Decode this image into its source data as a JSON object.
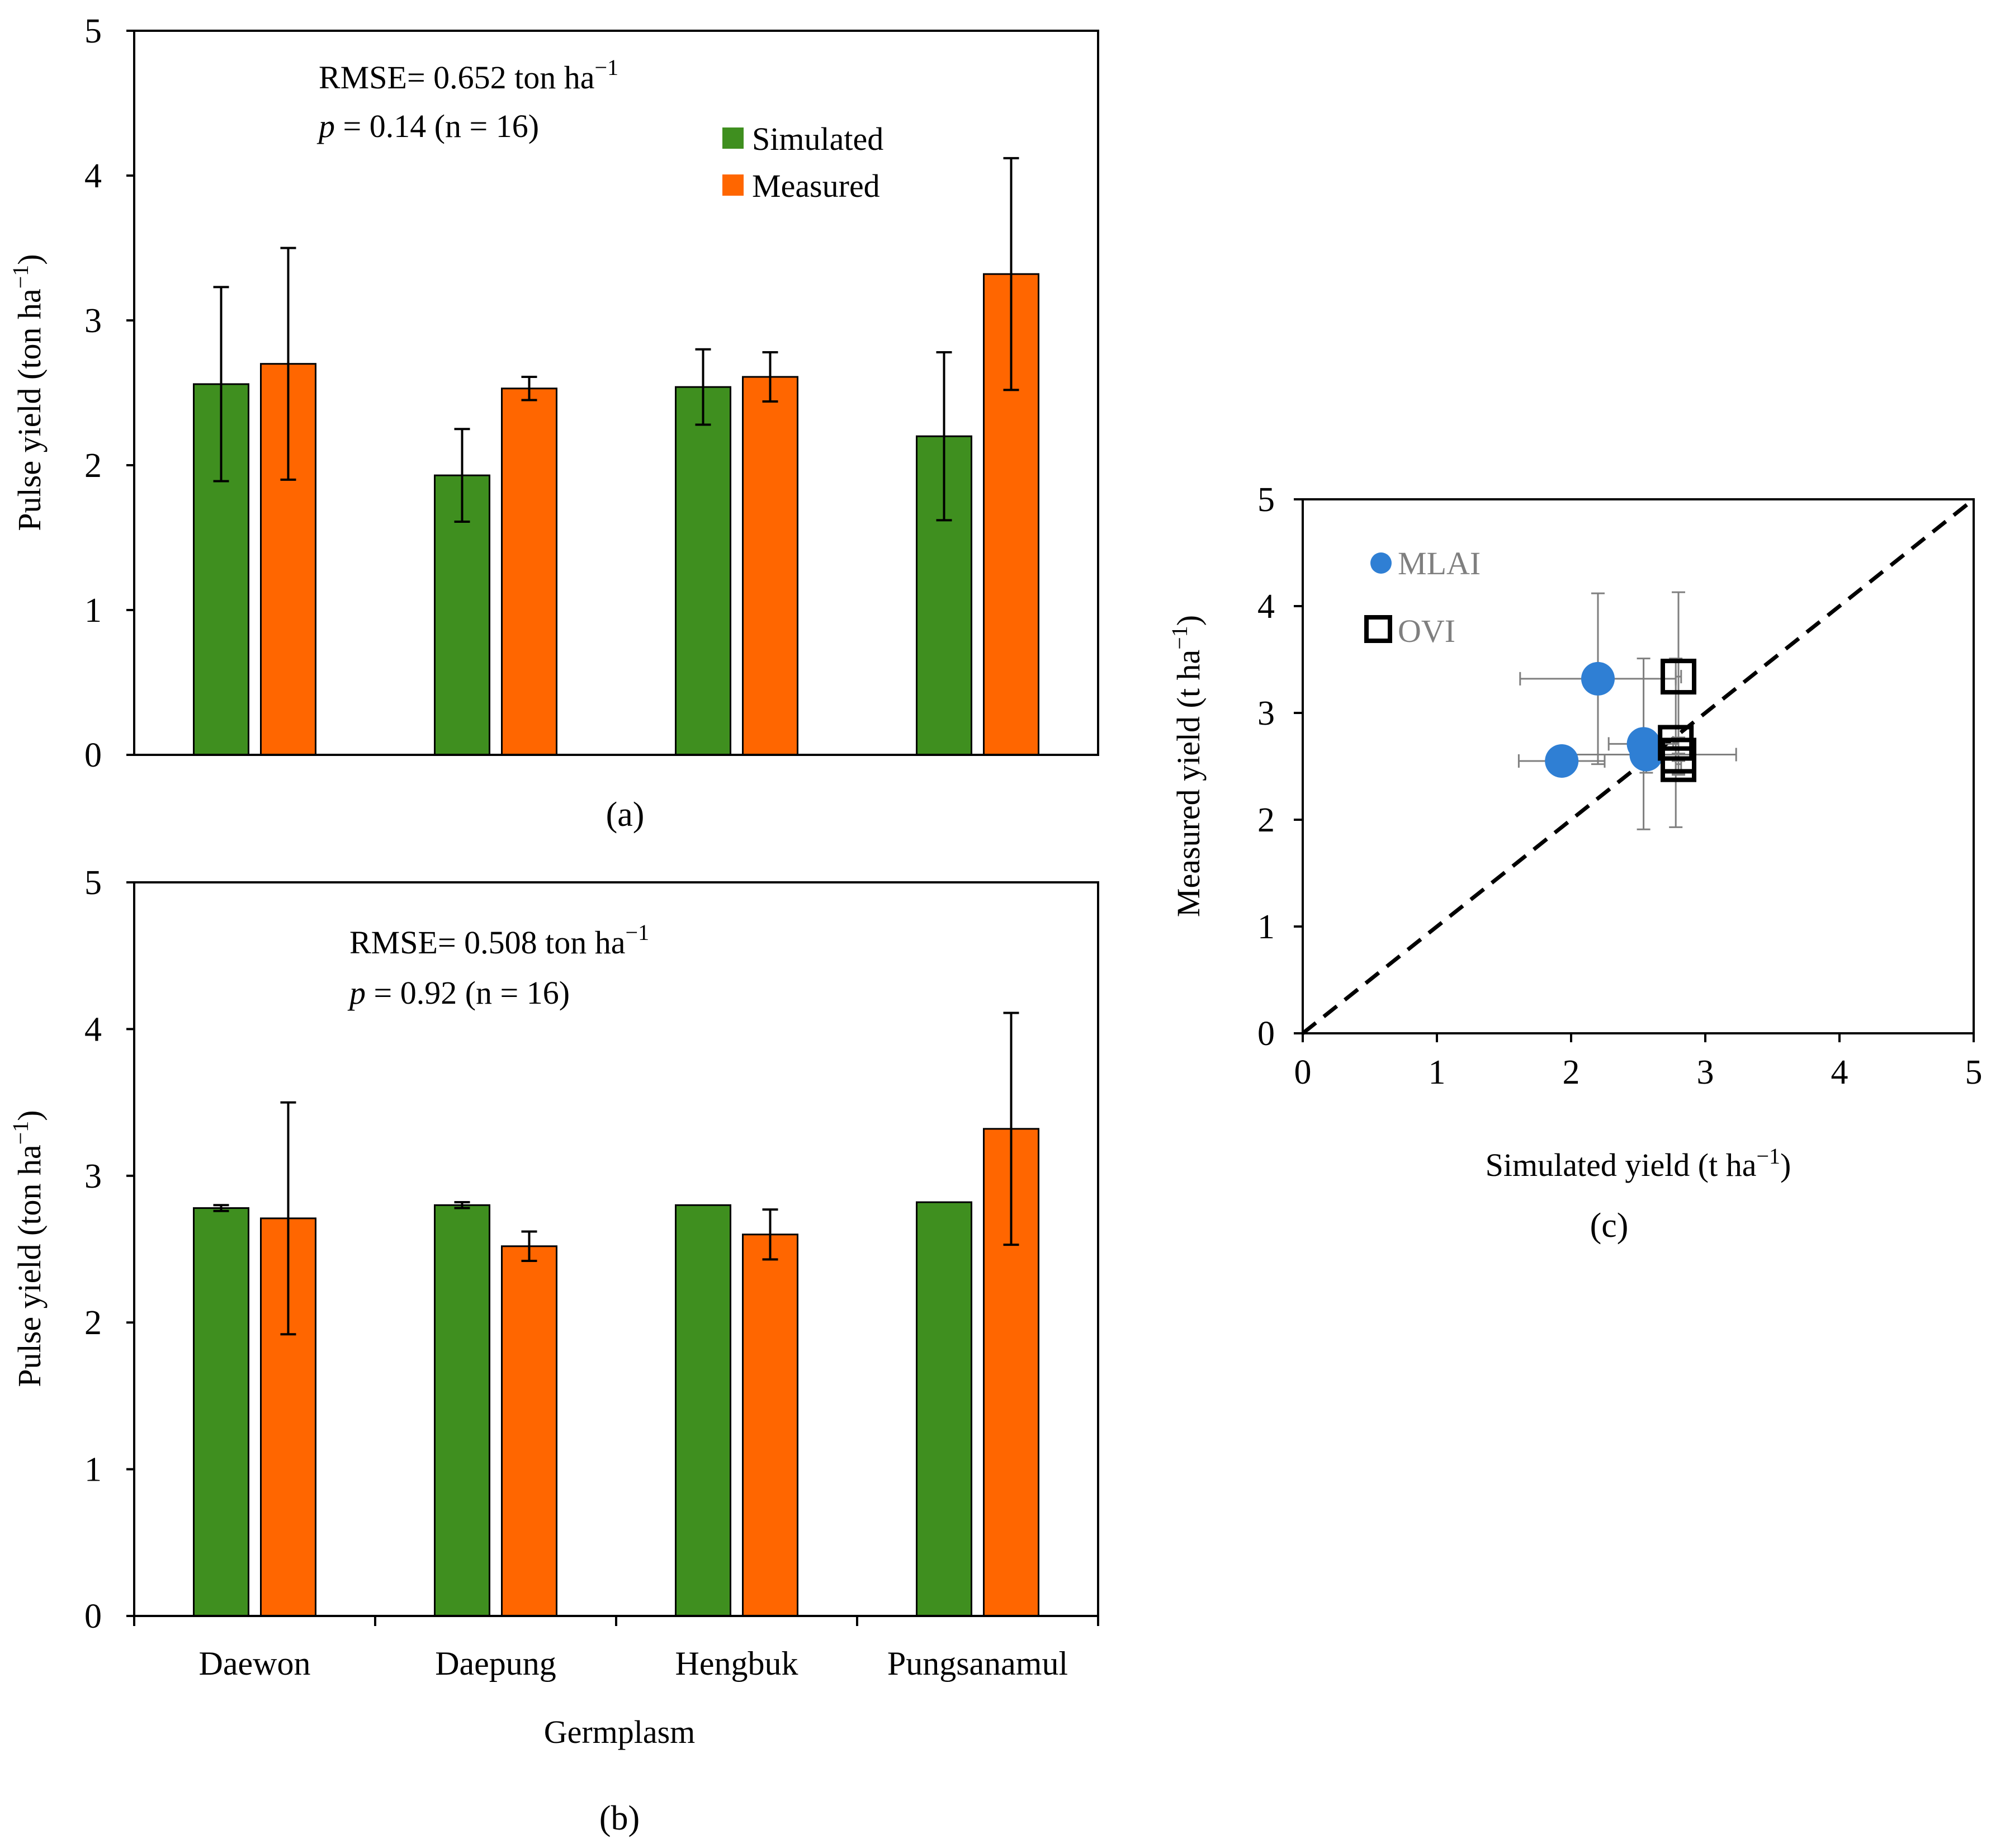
{
  "colors": {
    "simulated": "#3f8f1f",
    "measured": "#ff6600",
    "mlai": "#2f7fd4",
    "ovi_edge": "#000000",
    "error_bar": "#000000",
    "scatter_error_bar": "#7f7f7f"
  },
  "chart_data": [
    {
      "type": "bar",
      "panel": "(a)",
      "caption": "(a)",
      "categories": [
        "Daewon",
        "Daepung",
        "Hengbuk",
        "Pungsanamul"
      ],
      "series": [
        {
          "name": "Simulated",
          "values": [
            2.56,
            1.93,
            2.54,
            2.2
          ],
          "errors": [
            0.67,
            0.32,
            0.26,
            0.58
          ]
        },
        {
          "name": "Measured",
          "values": [
            2.7,
            2.53,
            2.61,
            3.32
          ],
          "errors": [
            0.8,
            0.08,
            0.17,
            0.8
          ]
        }
      ],
      "ylabel_main": "Pulse yield (ton ha",
      "ylabel_sup": "−1",
      "ylabel_close": ")",
      "ylim": [
        0,
        5
      ],
      "yticks": [
        "0",
        "1",
        "2",
        "3",
        "4",
        "5"
      ],
      "rmse_label": "RMSE=  0.652  ton ha",
      "rmse_sup": "−1",
      "p_symbol": "p",
      "p_text": " = 0.14  (n = 16)",
      "legend": [
        "Simulated",
        "Measured"
      ]
    },
    {
      "type": "bar",
      "panel": "(b)",
      "caption": "(b)",
      "categories": [
        "Daewon",
        "Daepung",
        "Hengbuk",
        "Pungsanamul"
      ],
      "series": [
        {
          "name": "Simulated",
          "values": [
            2.78,
            2.8,
            2.8,
            2.82
          ],
          "errors": [
            0.02,
            0.02,
            0.0,
            0.0
          ]
        },
        {
          "name": "Measured",
          "values": [
            2.71,
            2.52,
            2.6,
            3.32
          ],
          "errors": [
            0.79,
            0.1,
            0.17,
            0.79
          ]
        }
      ],
      "ylabel_main": "Pulse yield (ton ha",
      "ylabel_sup": "−1",
      "ylabel_close": ")",
      "xlabel": "Germplasm",
      "ylim": [
        0,
        5
      ],
      "yticks": [
        "0",
        "1",
        "2",
        "3",
        "4",
        "5"
      ],
      "rmse_label": "RMSE=  0.508  ton ha",
      "rmse_sup": "−1",
      "p_symbol": "p",
      "p_text": " = 0.92  (n = 16)"
    },
    {
      "type": "scatter",
      "panel": "(c)",
      "caption": "(c)",
      "xlabel_main": "Simulated  yield (t ha",
      "xlabel_sup": "−1",
      "xlabel_close": ")",
      "ylabel_main": "Measured yield (t ha",
      "ylabel_sup": "−1",
      "ylabel_close": ")",
      "xlim": [
        0,
        5
      ],
      "ylim": [
        0,
        5
      ],
      "xticks": [
        "0",
        "1",
        "2",
        "3",
        "4",
        "5"
      ],
      "yticks": [
        "0",
        "1",
        "2",
        "3",
        "4",
        "5"
      ],
      "reference_line": "1:1 dashed",
      "series": [
        {
          "name": "MLAI",
          "marker": "filled-circle",
          "points": [
            {
              "x": 2.2,
              "y": 3.32,
              "xerr": 0.58,
              "yerr": 0.8
            },
            {
              "x": 1.93,
              "y": 2.55,
              "xerr": 0.32,
              "yerr": 0.08
            },
            {
              "x": 2.54,
              "y": 2.71,
              "xerr": 0.26,
              "yerr": 0.8
            },
            {
              "x": 2.56,
              "y": 2.61,
              "xerr": 0.67,
              "yerr": 0.17
            }
          ]
        },
        {
          "name": "OVI",
          "marker": "open-square",
          "points": [
            {
              "x": 2.8,
              "y": 3.34,
              "xerr": 0.02,
              "yerr": 0.79
            },
            {
              "x": 2.78,
              "y": 2.72,
              "xerr": 0.02,
              "yerr": 0.79
            },
            {
              "x": 2.8,
              "y": 2.6,
              "xerr": 0.0,
              "yerr": 0.17
            },
            {
              "x": 2.8,
              "y": 2.52,
              "xerr": 0.02,
              "yerr": 0.1
            }
          ]
        }
      ],
      "legend": [
        "MLAI",
        "OVI"
      ]
    }
  ]
}
